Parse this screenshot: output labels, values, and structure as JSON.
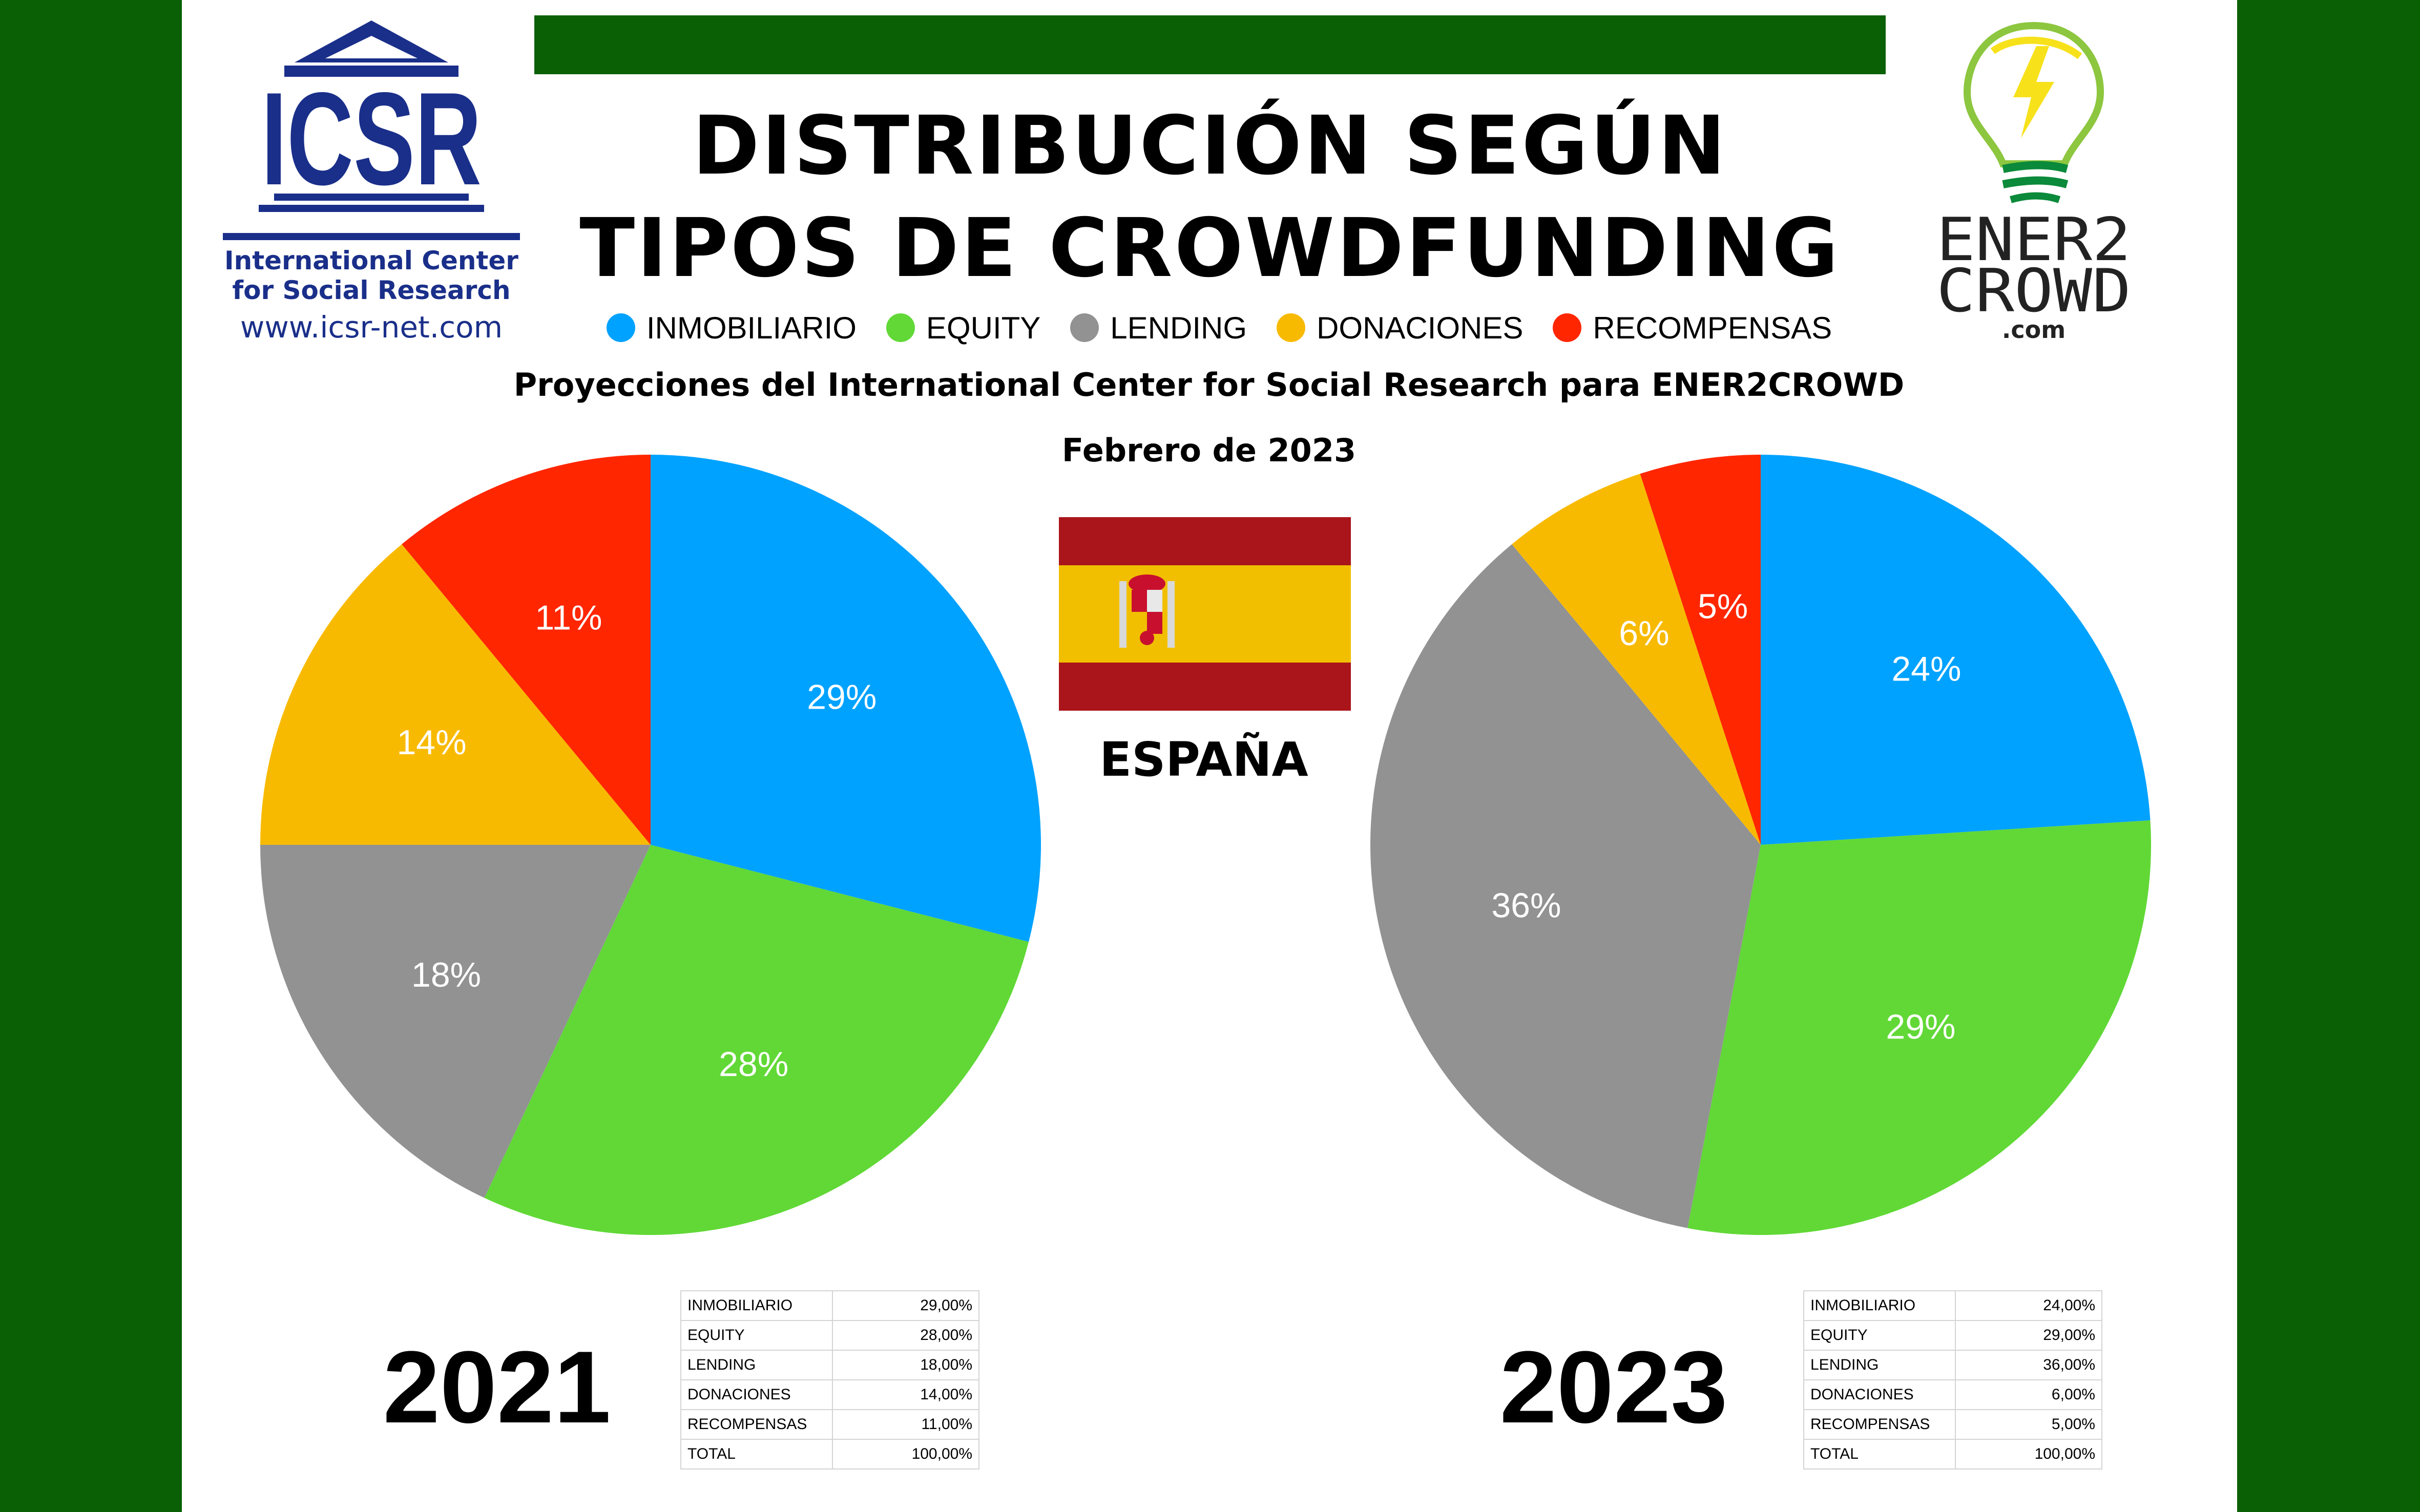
{
  "header": {
    "title_line1": "DISTRIBUCIÓN SEGÚN",
    "title_line2": "TIPOS DE CROWDFUNDING",
    "subtitle": "Proyecciones del International Center for Social Research para ENER2CROWD",
    "date": "Febrero de 2023",
    "country": "ESPAÑA"
  },
  "logos": {
    "icsr": {
      "acronym": "ICSR",
      "name_line1": "International Center",
      "name_line2": "for Social Research",
      "url": "www.icsr-net.com"
    },
    "ener2crowd": {
      "line1": "ENER2",
      "line2": "CROWD",
      "line3": ".com"
    }
  },
  "colors": {
    "inmobiliario": "#00a2ff",
    "equity": "#61d836",
    "lending": "#929292",
    "donaciones": "#f8ba00",
    "recompensas": "#ff2600",
    "frame_green": "#0a6005"
  },
  "legend": [
    {
      "label": "INMOBILIARIO",
      "color": "#00a2ff"
    },
    {
      "label": "EQUITY",
      "color": "#61d836"
    },
    {
      "label": "LENDING",
      "color": "#929292"
    },
    {
      "label": "DONACIONES",
      "color": "#f8ba00"
    },
    {
      "label": "RECOMPENSAS",
      "color": "#ff2600"
    }
  ],
  "chart_data": [
    {
      "type": "pie",
      "year": "2021",
      "categories": [
        "INMOBILIARIO",
        "EQUITY",
        "LENDING",
        "DONACIONES",
        "RECOMPENSAS"
      ],
      "values": [
        29,
        28,
        18,
        14,
        11
      ],
      "labels": [
        "29%",
        "28%",
        "18%",
        "14%",
        "11%"
      ],
      "colors": [
        "#00a2ff",
        "#61d836",
        "#929292",
        "#f8ba00",
        "#ff2600"
      ],
      "table": [
        {
          "label": "INMOBILIARIO",
          "value": "29,00%"
        },
        {
          "label": "EQUITY",
          "value": "28,00%"
        },
        {
          "label": "LENDING",
          "value": "18,00%"
        },
        {
          "label": "DONACIONES",
          "value": "14,00%"
        },
        {
          "label": "RECOMPENSAS",
          "value": "11,00%"
        },
        {
          "label": "TOTAL",
          "value": "100,00%"
        }
      ]
    },
    {
      "type": "pie",
      "year": "2023",
      "categories": [
        "INMOBILIARIO",
        "EQUITY",
        "LENDING",
        "DONACIONES",
        "RECOMPENSAS"
      ],
      "values": [
        24,
        29,
        36,
        6,
        5
      ],
      "labels": [
        "24%",
        "29%",
        "36%",
        "6%",
        "5%"
      ],
      "colors": [
        "#00a2ff",
        "#61d836",
        "#929292",
        "#f8ba00",
        "#ff2600"
      ],
      "table": [
        {
          "label": "INMOBILIARIO",
          "value": "24,00%"
        },
        {
          "label": "EQUITY",
          "value": "29,00%"
        },
        {
          "label": "LENDING",
          "value": "36,00%"
        },
        {
          "label": "DONACIONES",
          "value": "6,00%"
        },
        {
          "label": "RECOMPENSAS",
          "value": "5,00%"
        },
        {
          "label": "TOTAL",
          "value": "100,00%"
        }
      ]
    }
  ]
}
